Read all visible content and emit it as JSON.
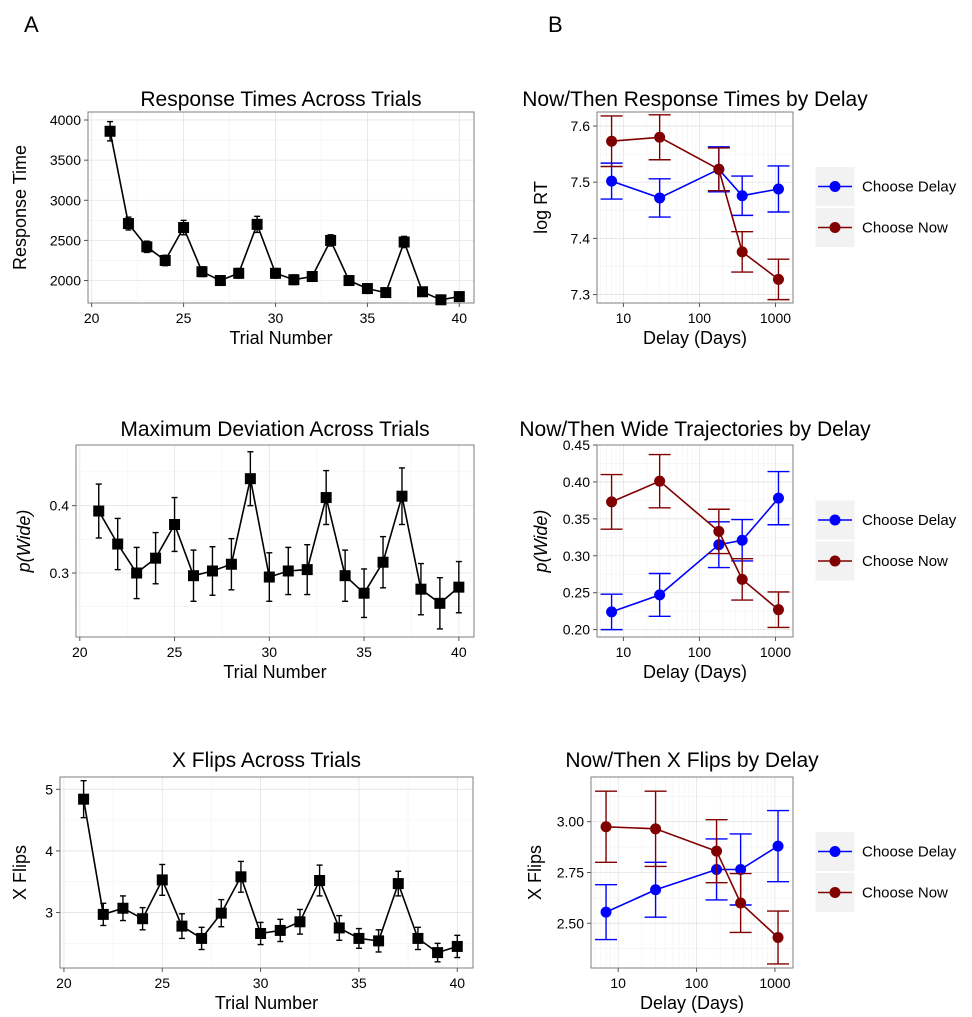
{
  "panel_labels": [
    "A",
    "B"
  ],
  "legend": {
    "entries": [
      {
        "name": "Choose Delay",
        "color": "#0000ff"
      },
      {
        "name": "Choose Now",
        "color": "#800000"
      }
    ]
  },
  "chart_data": [
    {
      "id": "rt-trials",
      "type": "line",
      "title": "Response Times Across Trials",
      "xlabel": "Trial Number",
      "ylabel": "Response Time",
      "ylabel_italic": false,
      "xlim": [
        19.8,
        40.8
      ],
      "ylim": [
        1720,
        4100
      ],
      "xticks": [
        20,
        25,
        30,
        35,
        40
      ],
      "yticks": [
        2000,
        2500,
        3000,
        3500,
        4000
      ],
      "ytick_labels": [
        "2000",
        "2500",
        "3000",
        "3500",
        "4000"
      ],
      "grid": true,
      "color": "#000000",
      "x": [
        21,
        22,
        23,
        24,
        25,
        26,
        27,
        28,
        29,
        30,
        31,
        32,
        33,
        34,
        35,
        36,
        37,
        38,
        39,
        40
      ],
      "y": [
        3860,
        2710,
        2420,
        2250,
        2660,
        2110,
        2000,
        2090,
        2700,
        2090,
        2010,
        2050,
        2500,
        2000,
        1900,
        1850,
        2480,
        1860,
        1760,
        1800
      ],
      "err": [
        120,
        80,
        70,
        65,
        90,
        60,
        60,
        60,
        100,
        60,
        60,
        60,
        70,
        60,
        60,
        55,
        70,
        55,
        50,
        55
      ]
    },
    {
      "id": "rt-delay",
      "type": "line",
      "title": "Now/Then Response Times by Delay",
      "xlabel": "Delay (Days)",
      "ylabel": "log RT",
      "ylabel_italic": false,
      "xscale": "log",
      "xlim": [
        4.5,
        1700
      ],
      "ylim": [
        7.285,
        7.625
      ],
      "xticks": [
        10,
        100,
        1000
      ],
      "yticks": [
        7.3,
        7.4,
        7.5,
        7.6
      ],
      "ytick_labels": [
        "7.3",
        "7.4",
        "7.5",
        "7.6"
      ],
      "grid": true,
      "legend": "right",
      "series": [
        {
          "name": "Choose Delay",
          "color": "#0000ff",
          "x": [
            7,
            30,
            180,
            365,
            1095
          ],
          "y": [
            7.502,
            7.472,
            7.523,
            7.476,
            7.488
          ],
          "err": [
            0.032,
            0.034,
            0.04,
            0.035,
            0.041
          ]
        },
        {
          "name": "Choose Now",
          "color": "#800000",
          "x": [
            7,
            30,
            180,
            365,
            1095
          ],
          "y": [
            7.573,
            7.58,
            7.523,
            7.376,
            7.327
          ],
          "err": [
            0.045,
            0.04,
            0.038,
            0.036,
            0.036
          ]
        }
      ]
    },
    {
      "id": "maxdev-trials",
      "type": "line",
      "title": "Maximum Deviation Across Trials",
      "xlabel": "Trial Number",
      "ylabel": "p(Wide)",
      "ylabel_italic": true,
      "xlim": [
        19.8,
        40.8
      ],
      "ylim": [
        0.205,
        0.49
      ],
      "xticks": [
        20,
        25,
        30,
        35,
        40
      ],
      "yticks": [
        0.3,
        0.4
      ],
      "ytick_labels": [
        "0.3",
        "0.4"
      ],
      "grid": true,
      "color": "#000000",
      "x": [
        21,
        22,
        23,
        24,
        25,
        26,
        27,
        28,
        29,
        30,
        31,
        32,
        33,
        34,
        35,
        36,
        37,
        38,
        39,
        40
      ],
      "y": [
        0.392,
        0.343,
        0.3,
        0.322,
        0.372,
        0.296,
        0.303,
        0.313,
        0.44,
        0.294,
        0.303,
        0.305,
        0.412,
        0.296,
        0.27,
        0.316,
        0.414,
        0.276,
        0.255,
        0.279
      ],
      "err": [
        0.04,
        0.038,
        0.038,
        0.038,
        0.04,
        0.038,
        0.036,
        0.038,
        0.04,
        0.036,
        0.035,
        0.037,
        0.04,
        0.038,
        0.036,
        0.038,
        0.042,
        0.038,
        0.038,
        0.038
      ]
    },
    {
      "id": "maxdev-delay",
      "type": "line",
      "title": "Now/Then Wide Trajectories by Delay",
      "xlabel": "Delay (Days)",
      "ylabel": "p(Wide)",
      "ylabel_italic": true,
      "xscale": "log",
      "xlim": [
        4.5,
        1700
      ],
      "ylim": [
        0.19,
        0.45
      ],
      "xticks": [
        10,
        100,
        1000
      ],
      "yticks": [
        0.2,
        0.25,
        0.3,
        0.35,
        0.4,
        0.45
      ],
      "ytick_labels": [
        "0.20",
        "0.25",
        "0.30",
        "0.35",
        "0.40",
        "0.45"
      ],
      "grid": true,
      "legend": "right",
      "series": [
        {
          "name": "Choose Delay",
          "color": "#0000ff",
          "x": [
            7,
            30,
            180,
            365,
            1095
          ],
          "y": [
            0.224,
            0.247,
            0.315,
            0.321,
            0.378
          ],
          "err": [
            0.024,
            0.029,
            0.031,
            0.028,
            0.036
          ]
        },
        {
          "name": "Choose Now",
          "color": "#800000",
          "x": [
            7,
            30,
            180,
            365,
            1095
          ],
          "y": [
            0.373,
            0.401,
            0.333,
            0.268,
            0.227
          ],
          "err": [
            0.037,
            0.036,
            0.03,
            0.028,
            0.024
          ]
        }
      ]
    },
    {
      "id": "xflips-trials",
      "type": "line",
      "title": "X Flips Across Trials",
      "xlabel": "Trial Number",
      "ylabel": "X Flips",
      "ylabel_italic": false,
      "xlim": [
        19.8,
        40.8
      ],
      "ylim": [
        2.1,
        5.2
      ],
      "xticks": [
        20,
        25,
        30,
        35,
        40
      ],
      "yticks": [
        3,
        4,
        5
      ],
      "ytick_labels": [
        "3",
        "4",
        "5"
      ],
      "grid": true,
      "color": "#000000",
      "x": [
        21,
        22,
        23,
        24,
        25,
        26,
        27,
        28,
        29,
        30,
        31,
        32,
        33,
        34,
        35,
        36,
        37,
        38,
        39,
        40
      ],
      "y": [
        4.84,
        2.97,
        3.07,
        2.9,
        3.53,
        2.78,
        2.58,
        2.99,
        3.58,
        2.66,
        2.71,
        2.85,
        3.52,
        2.75,
        2.58,
        2.54,
        3.47,
        2.58,
        2.35,
        2.45
      ],
      "err": [
        0.3,
        0.18,
        0.2,
        0.18,
        0.25,
        0.2,
        0.18,
        0.22,
        0.25,
        0.18,
        0.18,
        0.2,
        0.25,
        0.2,
        0.16,
        0.18,
        0.2,
        0.18,
        0.15,
        0.18
      ]
    },
    {
      "id": "xflips-delay",
      "type": "line",
      "title": "Now/Then X Flips by Delay",
      "xlabel": "Delay (Days)",
      "ylabel": "X Flips",
      "ylabel_italic": false,
      "xscale": "log",
      "xlim": [
        4.5,
        1700
      ],
      "ylim": [
        2.28,
        3.22
      ],
      "xticks": [
        10,
        100,
        1000
      ],
      "yticks": [
        2.5,
        2.75,
        3.0
      ],
      "ytick_labels": [
        "2.50",
        "2.75",
        "3.00"
      ],
      "grid": true,
      "legend": "right",
      "series": [
        {
          "name": "Choose Delay",
          "color": "#0000ff",
          "x": [
            7,
            30,
            180,
            365,
            1095
          ],
          "y": [
            2.555,
            2.665,
            2.765,
            2.765,
            2.88
          ],
          "err": [
            0.135,
            0.135,
            0.15,
            0.175,
            0.175
          ]
        },
        {
          "name": "Choose Now",
          "color": "#800000",
          "x": [
            7,
            30,
            180,
            365,
            1095
          ],
          "y": [
            2.975,
            2.965,
            2.855,
            2.6,
            2.43
          ],
          "err": [
            0.175,
            0.185,
            0.155,
            0.145,
            0.13
          ]
        }
      ]
    }
  ]
}
